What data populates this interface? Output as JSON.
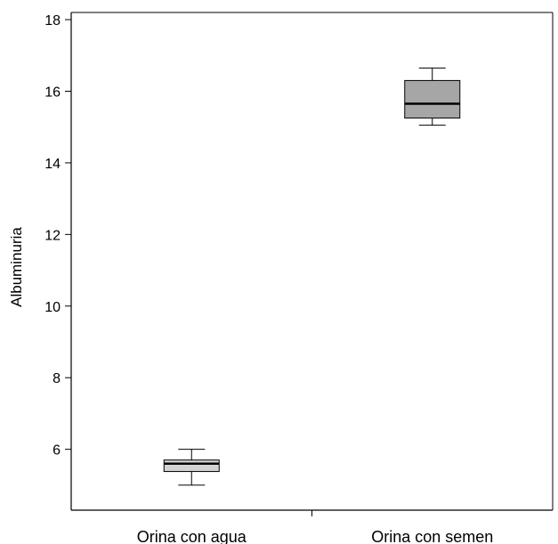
{
  "chart_data": {
    "type": "box",
    "title": "",
    "xlabel": "",
    "ylabel": "Albuminuria",
    "ylim": [
      4.3,
      18.2
    ],
    "yticks": [
      6,
      8,
      10,
      12,
      14,
      16,
      18
    ],
    "grid": false,
    "categories": [
      "Orina con agua",
      "Orina con semen"
    ],
    "boxes": [
      {
        "category": "Orina con agua",
        "min": 5.0,
        "q1": 5.38,
        "median": 5.6,
        "q3": 5.7,
        "max": 6.0,
        "fill": "#d3d3d3"
      },
      {
        "category": "Orina con semen",
        "min": 15.05,
        "q1": 15.25,
        "median": 15.65,
        "q3": 16.3,
        "max": 16.65,
        "fill": "#a6a6a6"
      }
    ]
  }
}
